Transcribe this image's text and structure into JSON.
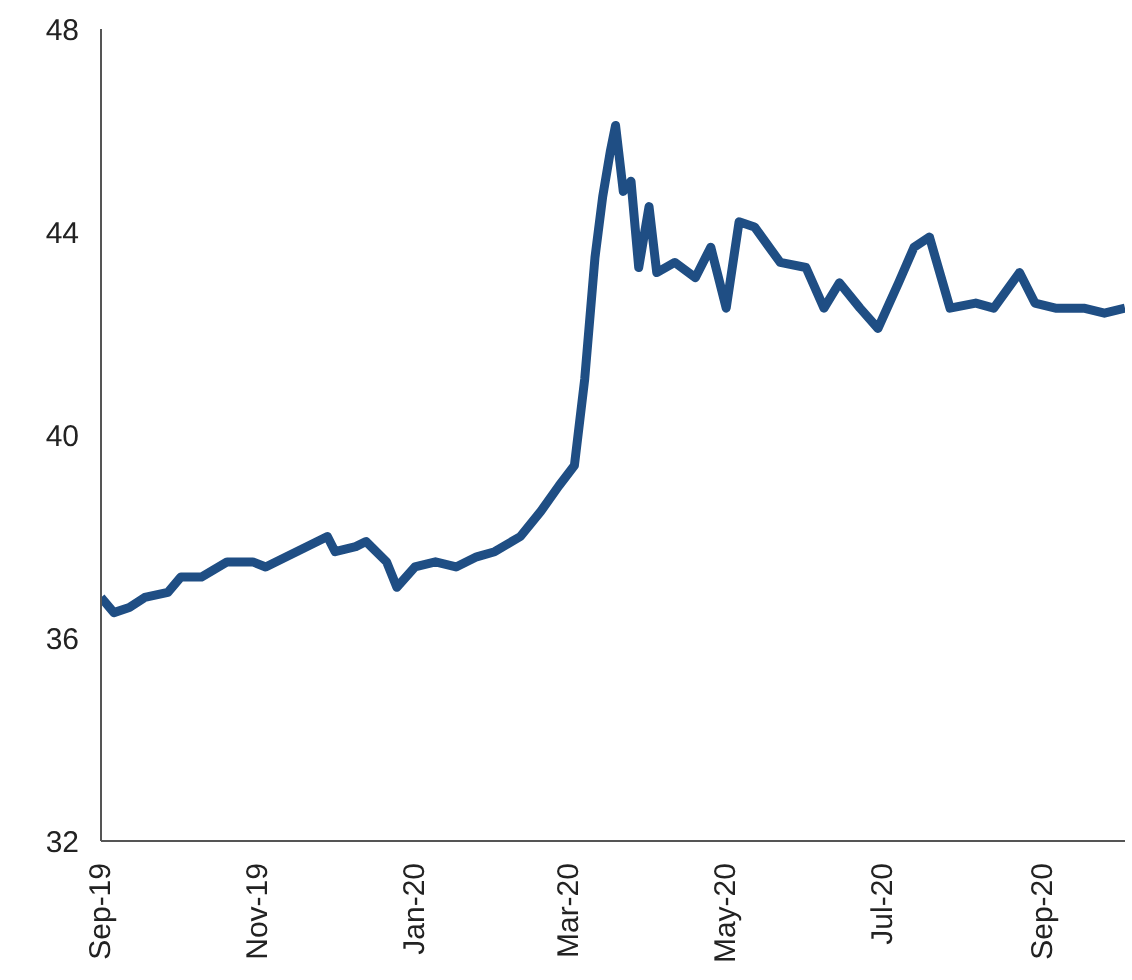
{
  "chart_data": {
    "type": "line",
    "x": [
      "2019-09-01",
      "2019-09-06",
      "2019-09-12",
      "2019-09-18",
      "2019-09-27",
      "2019-10-02",
      "2019-10-10",
      "2019-10-20",
      "2019-10-30",
      "2019-11-04",
      "2019-11-16",
      "2019-11-28",
      "2019-12-01",
      "2019-12-09",
      "2019-12-13",
      "2019-12-21",
      "2019-12-25",
      "2020-01-01",
      "2020-01-09",
      "2020-01-17",
      "2020-01-25",
      "2020-02-01",
      "2020-02-11",
      "2020-02-19",
      "2020-02-26",
      "2020-03-03",
      "2020-03-07",
      "2020-03-11",
      "2020-03-14",
      "2020-03-17",
      "2020-03-19",
      "2020-03-22",
      "2020-03-25",
      "2020-03-28",
      "2020-04-01",
      "2020-04-04",
      "2020-04-11",
      "2020-04-19",
      "2020-04-25",
      "2020-05-01",
      "2020-05-06",
      "2020-05-12",
      "2020-05-22",
      "2020-06-01",
      "2020-06-08",
      "2020-06-14",
      "2020-06-22",
      "2020-06-29",
      "2020-07-07",
      "2020-07-13",
      "2020-07-19",
      "2020-07-27",
      "2020-08-06",
      "2020-08-13",
      "2020-08-23",
      "2020-08-29",
      "2020-09-06",
      "2020-09-17",
      "2020-09-25",
      "2020-10-03"
    ],
    "series": [
      {
        "color": "#1f4e84",
        "values": [
          36.8,
          36.5,
          36.6,
          36.8,
          36.9,
          37.2,
          37.2,
          37.5,
          37.5,
          37.4,
          37.7,
          38.0,
          37.7,
          37.8,
          37.9,
          37.5,
          37.0,
          37.4,
          37.5,
          37.4,
          37.6,
          37.7,
          38.0,
          38.5,
          39.0,
          39.4,
          41.1,
          43.5,
          44.7,
          45.6,
          46.1,
          44.8,
          45.0,
          43.3,
          44.5,
          43.2,
          43.4,
          43.1,
          43.7,
          42.5,
          44.2,
          44.1,
          43.4,
          43.3,
          42.5,
          43.0,
          42.5,
          42.1,
          43.0,
          43.7,
          43.9,
          42.5,
          42.6,
          42.5,
          43.2,
          42.6,
          42.5,
          42.5,
          42.4,
          42.5
        ]
      }
    ],
    "xlim": [
      "2019-09-01",
      "2020-10-03"
    ],
    "xticks": [
      {
        "value": "2019-09-01",
        "label": "Sep-19"
      },
      {
        "value": "2019-11-01",
        "label": "Nov-19"
      },
      {
        "value": "2020-01-01",
        "label": "Jan-20"
      },
      {
        "value": "2020-03-01",
        "label": "Mar-20"
      },
      {
        "value": "2020-05-01",
        "label": "May-20"
      },
      {
        "value": "2020-07-01",
        "label": "Jul-20"
      },
      {
        "value": "2020-09-01",
        "label": "Sep-20"
      }
    ],
    "ylim": [
      32,
      48
    ],
    "yticks": [
      32,
      36,
      40,
      44,
      48
    ],
    "grid": false,
    "marker": "none",
    "line_style": "solid"
  }
}
